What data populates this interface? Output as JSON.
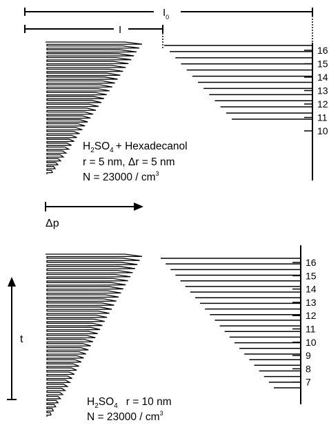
{
  "top": {
    "i0_label": "I",
    "i0_sub": "0",
    "i_label": "I",
    "lines": [
      {
        "pre": "H",
        "sub": "2",
        "mid": "SO",
        "sub2": "4",
        "post": "+ Hexadecanol"
      },
      {
        "text": "r = 5 nm, Δr = 5 nm"
      },
      {
        "text": "N = 23000 / cm",
        "sup": "3"
      }
    ],
    "axis_numbers": [
      "16",
      "15",
      "14",
      "13",
      "12",
      "11",
      "10"
    ]
  },
  "middle": {
    "dp_label": "Δp"
  },
  "bottom": {
    "t_label": "t",
    "lines": [
      {
        "pre": "H",
        "sub": "2",
        "mid": "SO",
        "sub2": "4",
        "post": "r = 10 nm"
      },
      {
        "text": "N = 23000 / cm",
        "sup": "3"
      }
    ],
    "axis_numbers": [
      "16",
      "15",
      "14",
      "13",
      "12",
      "11",
      "10",
      "9",
      "8",
      "7"
    ]
  },
  "colors": {
    "ink": "#000000",
    "background": "#ffffff"
  }
}
